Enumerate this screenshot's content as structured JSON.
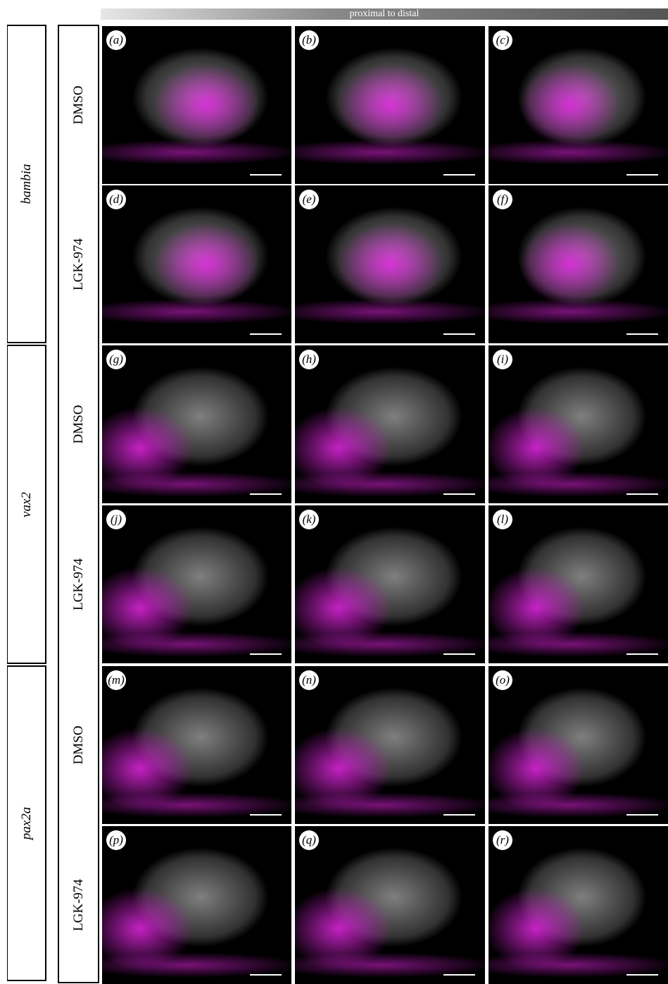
{
  "header": {
    "axis_label": "proximal to distal"
  },
  "genes": [
    "bambia",
    "vax2",
    "pax2a"
  ],
  "rows": [
    {
      "treatment": "DMSO",
      "panels": [
        "(a)",
        "(b)",
        "(c)"
      ]
    },
    {
      "treatment": "LGK-974",
      "panels": [
        "(d)",
        "(e)",
        "(f)"
      ]
    },
    {
      "treatment": "DMSO",
      "panels": [
        "(g)",
        "(h)",
        "(i)"
      ]
    },
    {
      "treatment": "LGK-974",
      "panels": [
        "(j)",
        "(k)",
        "(l)"
      ]
    },
    {
      "treatment": "DMSO",
      "panels": [
        "(m)",
        "(n)",
        "(o)"
      ]
    },
    {
      "treatment": "LGK-974",
      "panels": [
        "(p)",
        "(q)",
        "(r)"
      ]
    }
  ]
}
